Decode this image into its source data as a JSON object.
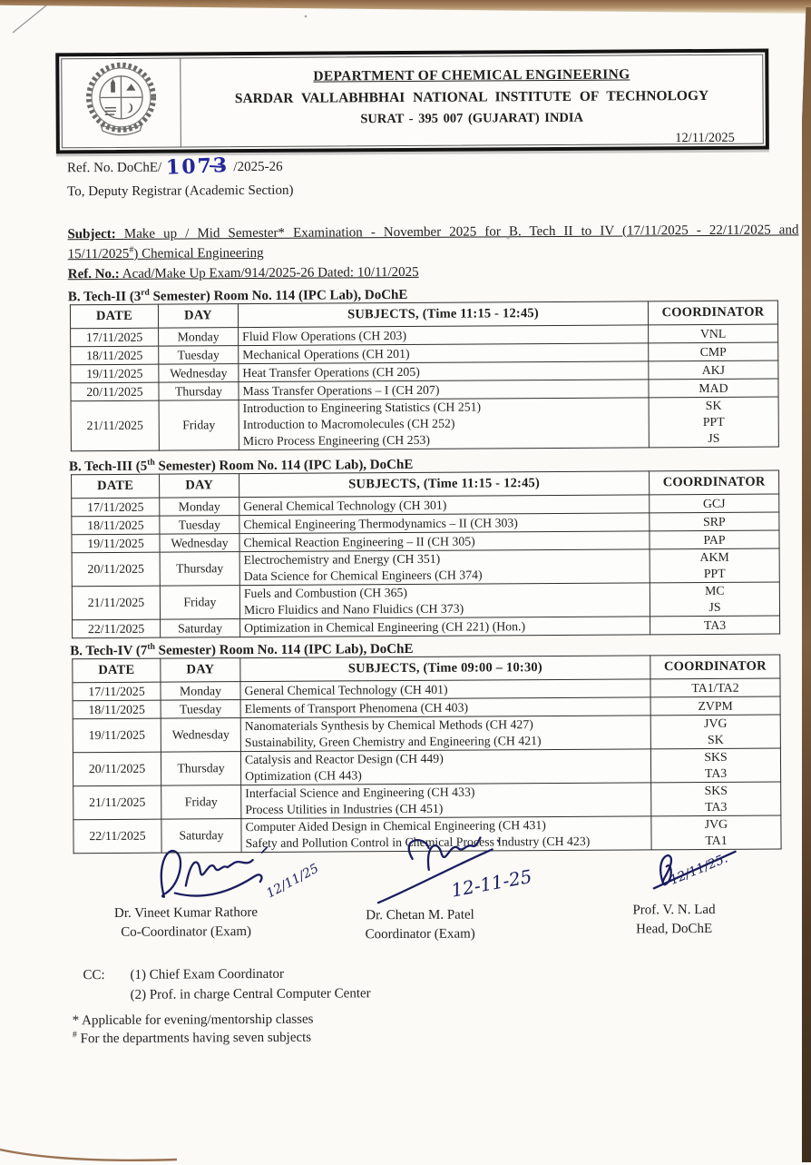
{
  "colors": {
    "ink": "#1f1f1f",
    "handwriting_ink": "#23279b",
    "signature_ink": "#1a1d5e",
    "paper": "#fbfaf7",
    "backdrop_wood": "#7a5c3d",
    "table_border": "#2e2e2e"
  },
  "header": {
    "department": "DEPARTMENT OF CHEMICAL ENGINEERING",
    "institute": "SARDAR VALLABHBHAI NATIONAL INSTITUTE OF TECHNOLOGY",
    "address": "SURAT - 395 007 (GUJARAT) INDIA",
    "logo": "institute-emblem-gear-seal"
  },
  "meta": {
    "issue_date": "12/11/2025",
    "ref_prefix": "Ref. No. DoChE/",
    "ref_handwritten": "1073",
    "ref_suffix": "/2025-26",
    "to_line": "To, Deputy Registrar (Academic Section)"
  },
  "subject": {
    "label": "Subject:",
    "line1_rest": " Make up / Mid Semester* Examination - November 2025 for B. Tech II to IV (17/11/2025 - 22/11/2025 and",
    "line2_date": "15/11/2025",
    "line2_sup": "#",
    "line2_rest": ") Chemical Engineering",
    "ref_label": "Ref. No.:",
    "ref_rest": " Acad/Make Up Exam/914/2025-26 Dated: 10/11/2025"
  },
  "tables": [
    {
      "title": {
        "prefix": "B. Tech-II (3",
        "sup": "rd",
        "rest": " Semester) Room No. 114 (IPC Lab), DoChE"
      },
      "columns": [
        "DATE",
        "DAY",
        "SUBJECTS, (Time 11:15 - 12:45)",
        "COORDINATOR"
      ],
      "rows": [
        {
          "date": "17/11/2025",
          "day": "Monday",
          "subjects": [
            "Fluid Flow Operations (CH 203)"
          ],
          "coordinators": [
            "VNL"
          ]
        },
        {
          "date": "18/11/2025",
          "day": "Tuesday",
          "subjects": [
            "Mechanical Operations (CH 201)"
          ],
          "coordinators": [
            "CMP"
          ]
        },
        {
          "date": "19/11/2025",
          "day": "Wednesday",
          "subjects": [
            "Heat Transfer Operations (CH 205)"
          ],
          "coordinators": [
            "AKJ"
          ]
        },
        {
          "date": "20/11/2025",
          "day": "Thursday",
          "subjects": [
            "Mass Transfer Operations – I (CH 207)"
          ],
          "coordinators": [
            "MAD"
          ]
        },
        {
          "date": "21/11/2025",
          "day": "Friday",
          "subjects": [
            "Introduction to Engineering Statistics (CH 251)",
            "Introduction to Macromolecules (CH 252)",
            "Micro Process Engineering (CH 253)"
          ],
          "coordinators": [
            "SK",
            "PPT",
            "JS"
          ]
        }
      ]
    },
    {
      "title": {
        "prefix": "B. Tech-III (5",
        "sup": "th",
        "rest": " Semester) Room No. 114 (IPC Lab), DoChE"
      },
      "columns": [
        "DATE",
        "DAY",
        "SUBJECTS, (Time 11:15 - 12:45)",
        "COORDINATOR"
      ],
      "rows": [
        {
          "date": "17/11/2025",
          "day": "Monday",
          "subjects": [
            "General Chemical Technology (CH 301)"
          ],
          "coordinators": [
            "GCJ"
          ]
        },
        {
          "date": "18/11/2025",
          "day": "Tuesday",
          "subjects": [
            "Chemical Engineering Thermodynamics – II (CH 303)"
          ],
          "coordinators": [
            "SRP"
          ]
        },
        {
          "date": "19/11/2025",
          "day": "Wednesday",
          "subjects": [
            "Chemical Reaction Engineering – II (CH 305)"
          ],
          "coordinators": [
            "PAP"
          ]
        },
        {
          "date": "20/11/2025",
          "day": "Thursday",
          "subjects": [
            "Electrochemistry and Energy (CH 351)",
            "Data Science for Chemical Engineers (CH 374)"
          ],
          "coordinators": [
            "AKM",
            "PPT"
          ]
        },
        {
          "date": "21/11/2025",
          "day": "Friday",
          "subjects": [
            "Fuels and Combustion (CH 365)",
            "Micro Fluidics and Nano Fluidics (CH 373)"
          ],
          "coordinators": [
            "MC",
            "JS"
          ]
        },
        {
          "date": "22/11/2025",
          "day": "Saturday",
          "subjects": [
            "Optimization in Chemical Engineering (CH 221) (Hon.)"
          ],
          "coordinators": [
            "TA3"
          ]
        }
      ]
    },
    {
      "title": {
        "prefix": "B. Tech-IV (7",
        "sup": "th",
        "rest": " Semester) Room No. 114 (IPC Lab), DoChE"
      },
      "columns": [
        "DATE",
        "DAY",
        "SUBJECTS, (Time 09:00 – 10:30)",
        "COORDINATOR"
      ],
      "rows": [
        {
          "date": "17/11/2025",
          "day": "Monday",
          "subjects": [
            "General Chemical Technology (CH 401)"
          ],
          "coordinators": [
            "TA1/TA2"
          ]
        },
        {
          "date": "18/11/2025",
          "day": "Tuesday",
          "subjects": [
            "Elements of Transport Phenomena (CH 403)"
          ],
          "coordinators": [
            "ZVPM"
          ]
        },
        {
          "date": "19/11/2025",
          "day": "Wednesday",
          "subjects": [
            "Nanomaterials Synthesis by Chemical Methods (CH 427)",
            "Sustainability, Green Chemistry and Engineering (CH 421)"
          ],
          "coordinators": [
            "JVG",
            "SK"
          ]
        },
        {
          "date": "20/11/2025",
          "day": "Thursday",
          "subjects": [
            "Catalysis and Reactor Design (CH 449)",
            "Optimization (CH 443)"
          ],
          "coordinators": [
            "SKS",
            "TA3"
          ]
        },
        {
          "date": "21/11/2025",
          "day": "Friday",
          "subjects": [
            "Interfacial Science and Engineering (CH 433)",
            "Process Utilities in Industries (CH 451)"
          ],
          "coordinators": [
            "SKS",
            "TA3"
          ]
        },
        {
          "date": "22/11/2025",
          "day": "Saturday",
          "subjects": [
            "Computer Aided Design in Chemical Engineering (CH 431)",
            "Safety and Pollution Control in Chemical Process Industry (CH 423)"
          ],
          "coordinators": [
            "JVG",
            "TA1"
          ]
        }
      ]
    }
  ],
  "signatories": [
    {
      "name": "Dr. Vineet Kumar Rathore",
      "role": "Co-Coordinator (Exam)",
      "handwritten_date": "12/11/25"
    },
    {
      "name": "Dr. Chetan M. Patel",
      "role": "Coordinator (Exam)",
      "handwritten_date": "12-11-25"
    },
    {
      "name": "Prof. V. N. Lad",
      "role": "Head, DoChE",
      "handwritten_date": "12/11/25."
    }
  ],
  "cc": {
    "label": "CC:",
    "items": [
      "(1) Chief Exam Coordinator",
      "(2) Prof. in charge Central Computer Center"
    ]
  },
  "footnotes": [
    {
      "marker": "*",
      "text": " Applicable for evening/mentorship classes"
    },
    {
      "marker": "#",
      "text": " For the departments having seven subjects"
    }
  ]
}
